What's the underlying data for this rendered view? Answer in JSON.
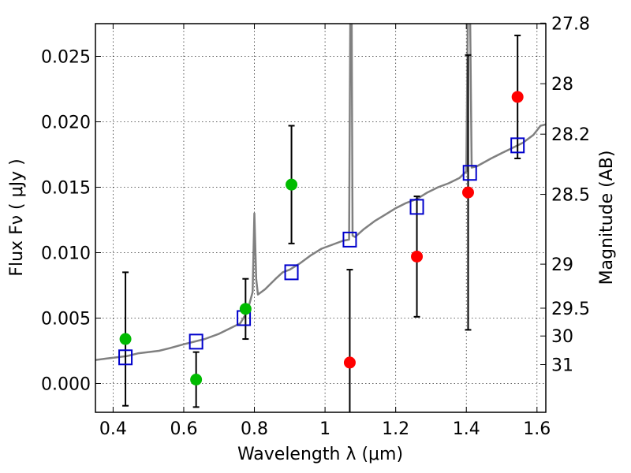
{
  "chart_data": {
    "type": "scatter",
    "xlabel": "Wavelength  λ (μm)",
    "ylabel": "Flux  Fν  ( μJy )",
    "y2label": "Magnitude (AB)",
    "xlim": [
      0.35,
      1.625
    ],
    "ylim": [
      -0.0022,
      0.0275
    ],
    "x_ticks": [
      "0.4",
      "0.6",
      "0.8",
      "1",
      "1.2",
      "1.4",
      "1.6"
    ],
    "x_tick_values": [
      0.4,
      0.6,
      0.8,
      1.0,
      1.2,
      1.4,
      1.6
    ],
    "y_ticks": [
      "0.000",
      "0.005",
      "0.010",
      "0.015",
      "0.020",
      "0.025"
    ],
    "y_tick_values": [
      0.0,
      0.005,
      0.01,
      0.015,
      0.02,
      0.025
    ],
    "y2_ticks": [
      "27.8",
      "28",
      "28.2",
      "28.5",
      "29",
      "29.5",
      "30",
      "31"
    ],
    "y2_tick_values": [
      27.8,
      28.0,
      28.2,
      28.5,
      29.0,
      29.5,
      30.0,
      31.0
    ],
    "grid": true,
    "colors": {
      "green": "#00bb00",
      "red": "#ff0000",
      "blue": "#0000cc",
      "model": "#808080"
    },
    "observed_green": [
      {
        "x": 0.435,
        "y": 0.0034,
        "err_lo": 0.0051,
        "err_hi": 0.0051
      },
      {
        "x": 0.635,
        "y": 0.0003,
        "err_lo": 0.0021,
        "err_hi": 0.0021
      },
      {
        "x": 0.775,
        "y": 0.0057,
        "err_lo": 0.0023,
        "err_hi": 0.0023
      },
      {
        "x": 0.905,
        "y": 0.0152,
        "err_lo": 0.0045,
        "err_hi": 0.0045
      }
    ],
    "observed_red": [
      {
        "x": 1.07,
        "y": 0.0016,
        "err_lo": 0.0071,
        "err_hi": 0.0071
      },
      {
        "x": 1.26,
        "y": 0.0097,
        "err_lo": 0.0046,
        "err_hi": 0.0046
      },
      {
        "x": 1.405,
        "y": 0.0146,
        "err_lo": 0.0105,
        "err_hi": 0.0105
      },
      {
        "x": 1.545,
        "y": 0.0219,
        "err_lo": 0.0047,
        "err_hi": 0.0047
      }
    ],
    "model_photometry": [
      {
        "x": 0.435,
        "y": 0.002
      },
      {
        "x": 0.635,
        "y": 0.0032
      },
      {
        "x": 0.77,
        "y": 0.005
      },
      {
        "x": 0.905,
        "y": 0.0085
      },
      {
        "x": 1.07,
        "y": 0.011
      },
      {
        "x": 1.26,
        "y": 0.0135
      },
      {
        "x": 1.41,
        "y": 0.0161
      },
      {
        "x": 1.545,
        "y": 0.0182
      }
    ],
    "model_spectrum": {
      "x": [
        0.35,
        0.38,
        0.41,
        0.44,
        0.47,
        0.5,
        0.53,
        0.56,
        0.6,
        0.63,
        0.66,
        0.7,
        0.73,
        0.76,
        0.78,
        0.795,
        0.8,
        0.805,
        0.81,
        0.83,
        0.86,
        0.88,
        0.9,
        0.93,
        0.96,
        0.99,
        1.02,
        1.05,
        1.068,
        1.072,
        1.075,
        1.078,
        1.085,
        1.11,
        1.14,
        1.17,
        1.2,
        1.23,
        1.26,
        1.29,
        1.32,
        1.35,
        1.38,
        1.4,
        1.405,
        1.41,
        1.415,
        1.43,
        1.45,
        1.47,
        1.5,
        1.53,
        1.56,
        1.59,
        1.61,
        1.625
      ],
      "y": [
        0.0018,
        0.0019,
        0.002,
        0.0021,
        0.0023,
        0.0024,
        0.0025,
        0.0027,
        0.003,
        0.0032,
        0.0034,
        0.0038,
        0.0042,
        0.0046,
        0.0055,
        0.007,
        0.013,
        0.008,
        0.0068,
        0.0072,
        0.008,
        0.0085,
        0.0087,
        0.0092,
        0.0098,
        0.0103,
        0.0106,
        0.0109,
        0.011,
        0.03,
        0.03,
        0.0113,
        0.0112,
        0.0118,
        0.0124,
        0.0129,
        0.0134,
        0.0138,
        0.0141,
        0.0146,
        0.015,
        0.0153,
        0.0157,
        0.0162,
        0.03,
        0.03,
        0.0165,
        0.0166,
        0.0169,
        0.0172,
        0.0176,
        0.018,
        0.0184,
        0.019,
        0.0197,
        0.0198
      ]
    }
  }
}
